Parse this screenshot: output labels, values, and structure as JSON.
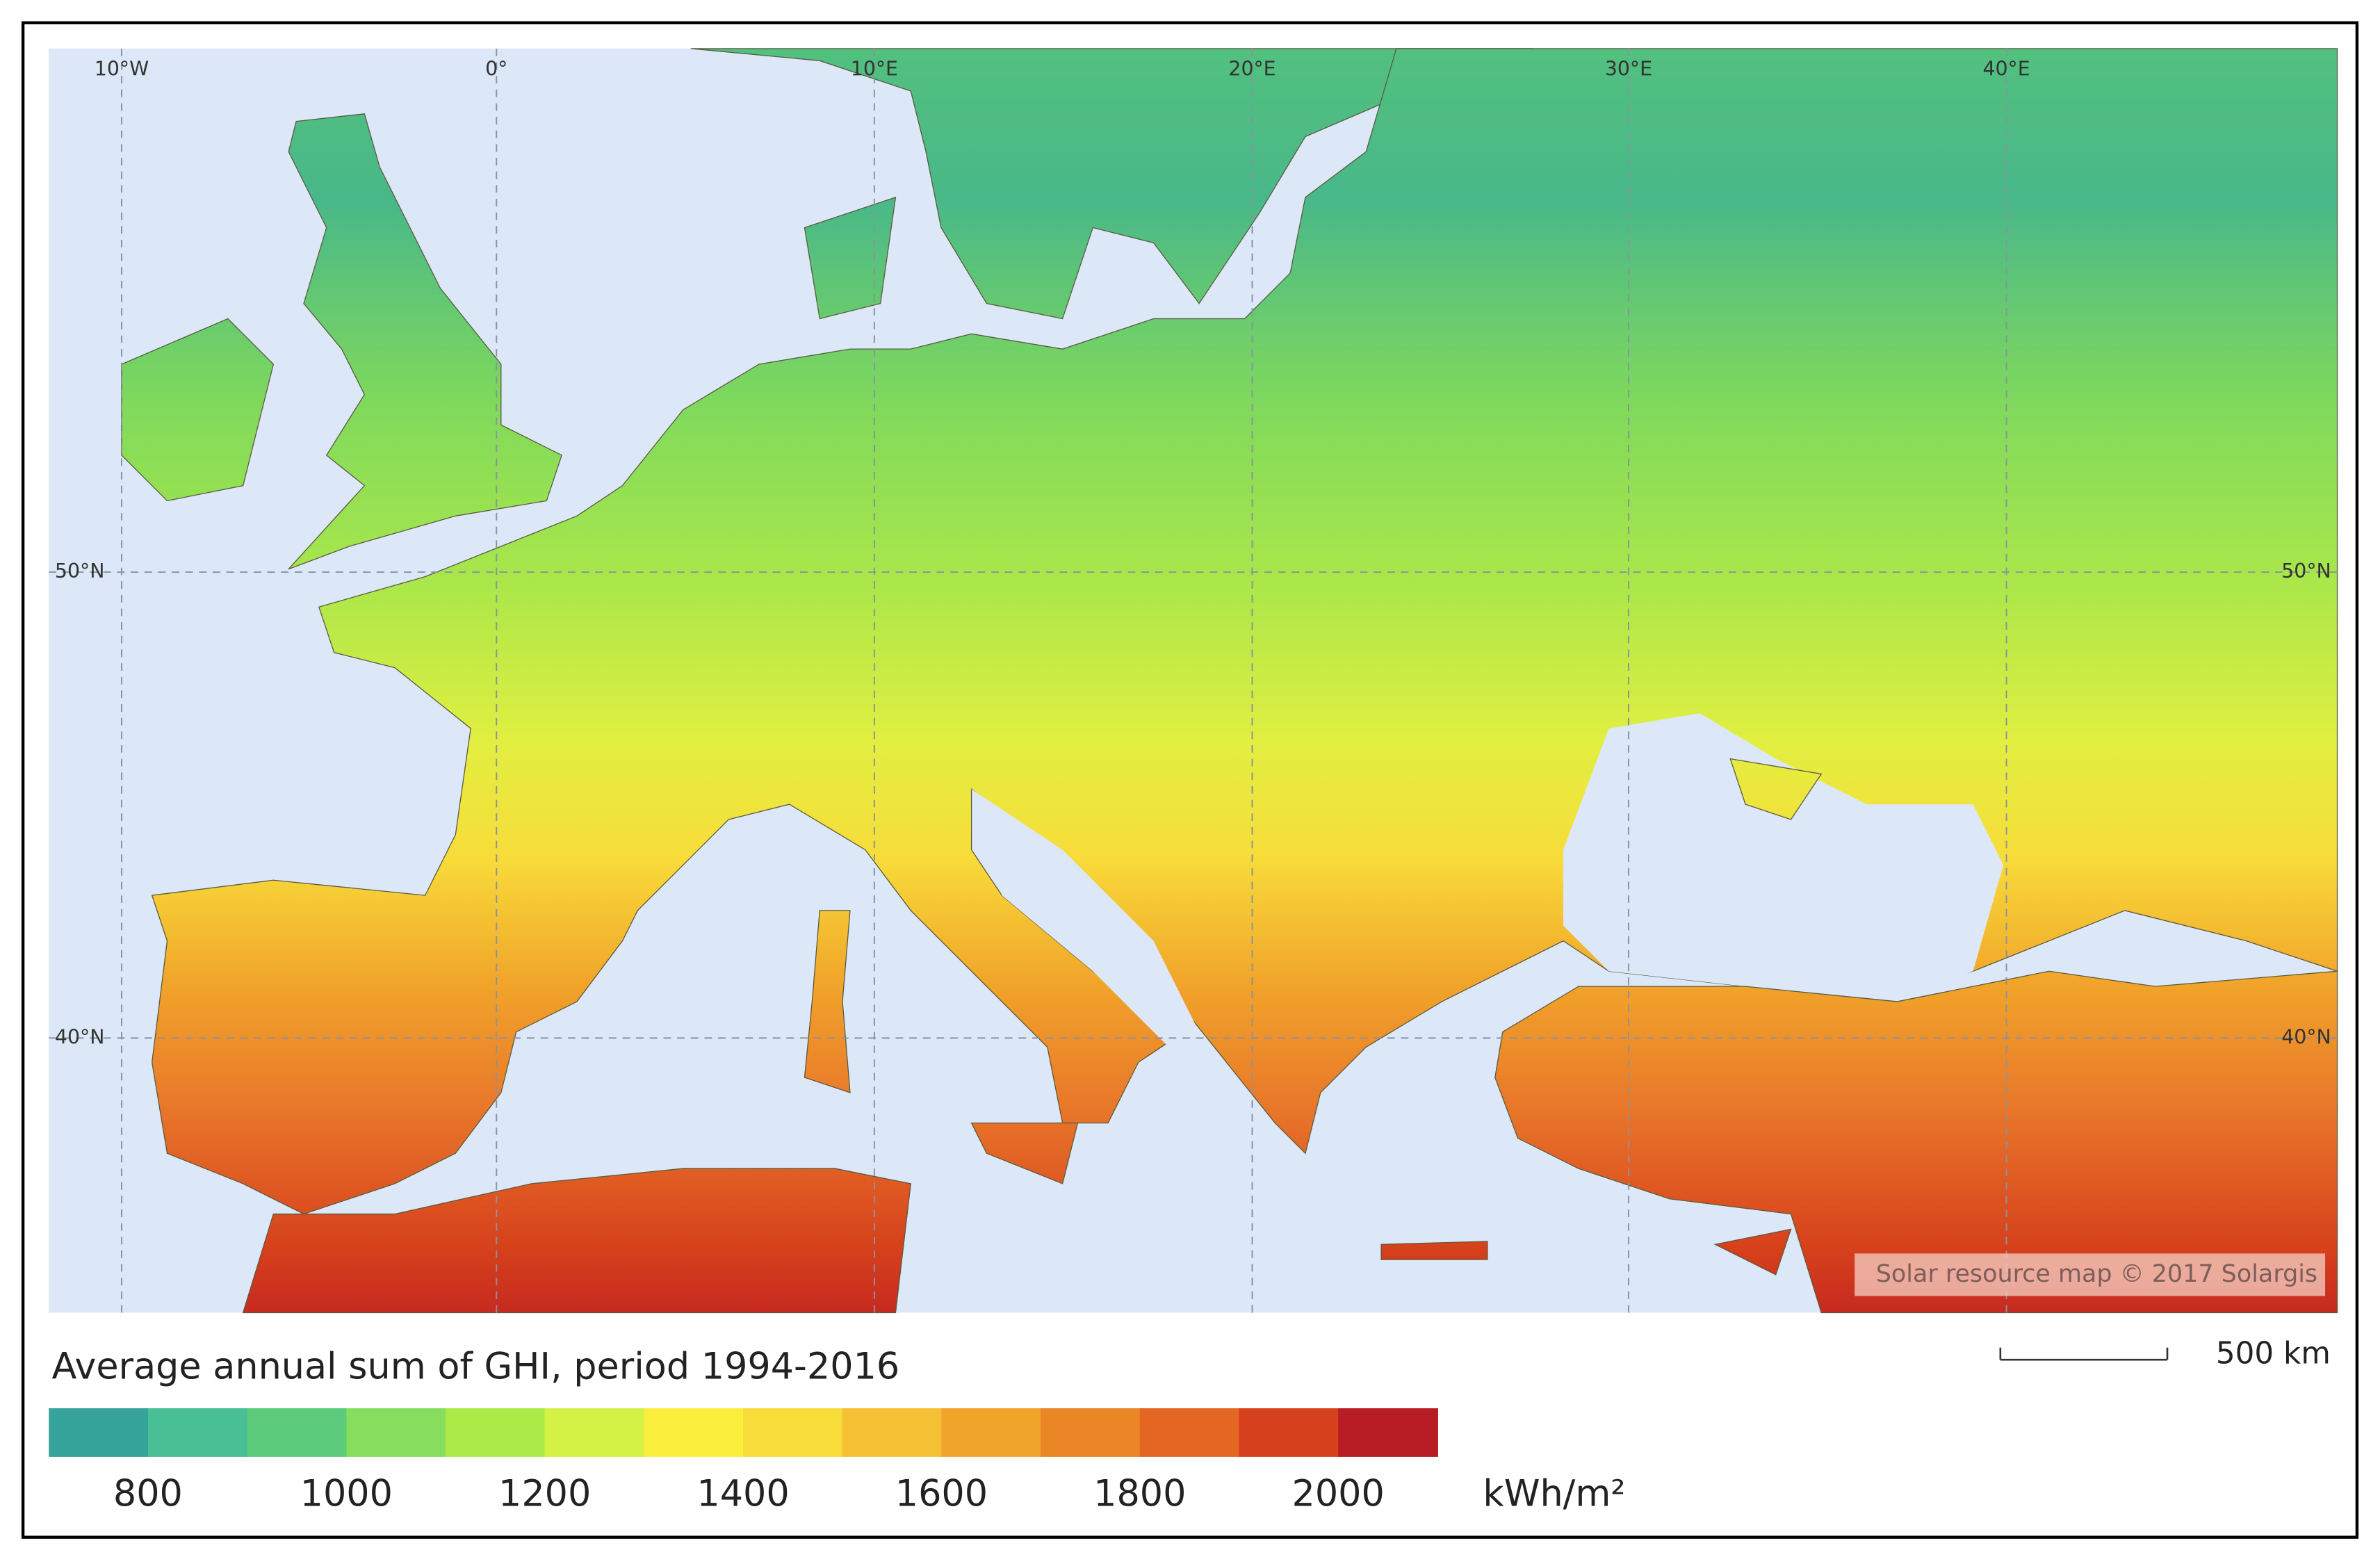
{
  "map": {
    "title": "Average annual sum of GHI, period 1994-2016",
    "credit": "Solar resource map © 2017 Solargis",
    "scale_bar": "500 km",
    "longitude_labels": [
      "10°W",
      "0°",
      "10°E",
      "20°E",
      "30°E",
      "40°E"
    ],
    "latitude_labels": [
      "50°N",
      "40°N"
    ],
    "legend": {
      "unit": "kWh/m²",
      "bins": [
        700,
        800,
        900,
        1000,
        1100,
        1200,
        1300,
        1400,
        1500,
        1600,
        1700,
        1800,
        1900,
        2000,
        2100
      ],
      "colors": [
        "#36a49a",
        "#48bf94",
        "#5ccc7c",
        "#86dd5e",
        "#acea48",
        "#d4f246",
        "#fbee3c",
        "#f8dc3a",
        "#f5c033",
        "#f1a42a",
        "#ea8626",
        "#e56522",
        "#d6401c",
        "#b81c24"
      ],
      "ticks": [
        800,
        1000,
        1200,
        1400,
        1600,
        1800,
        2000
      ]
    }
  }
}
